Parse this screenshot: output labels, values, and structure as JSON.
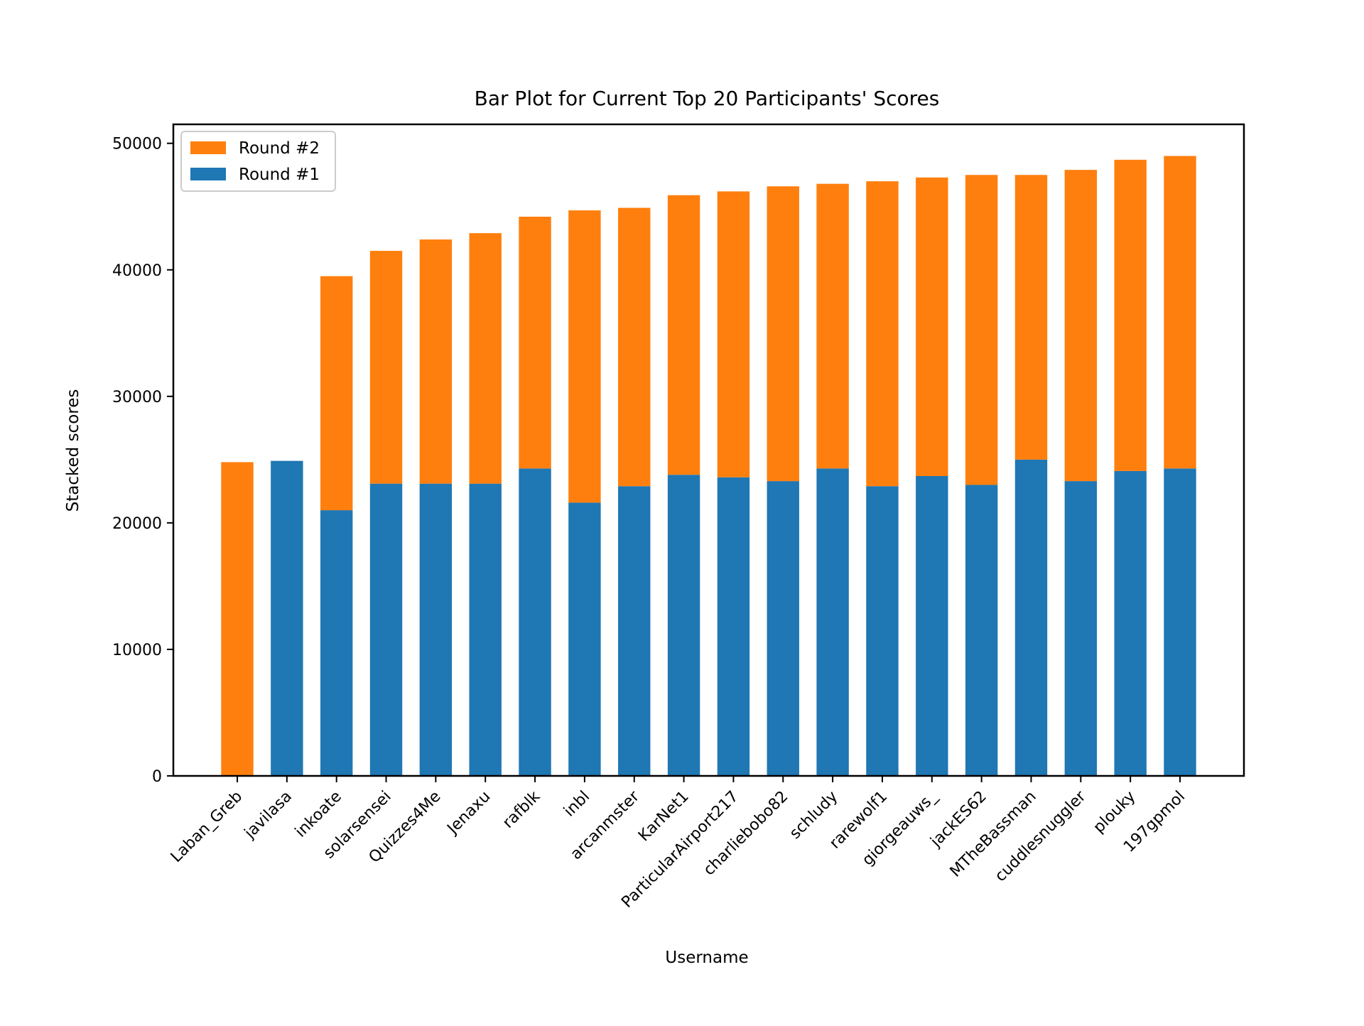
{
  "chart_data": {
    "type": "bar",
    "stacked": true,
    "title": "Bar Plot for Current Top 20 Participants' Scores",
    "xlabel": "Username",
    "ylabel": "Stacked scores",
    "ylim": [
      0,
      51500
    ],
    "yticks": [
      0,
      10000,
      20000,
      30000,
      40000,
      50000
    ],
    "ytick_labels": [
      "0",
      "10000",
      "20000",
      "30000",
      "40000",
      "50000"
    ],
    "legend_position": "upper-left",
    "categories": [
      "Laban_Greb",
      "javilasa",
      "inkoate",
      "solarsensei",
      "Quizzes4Me",
      "Jenaxu",
      "rafblk",
      "inbl",
      "arcanmster",
      "KarNet1",
      "ParticularAirport217",
      "charliebobo82",
      "schludy",
      "rarewolf1",
      "giorgeauws_",
      "jackES62",
      "MTheBassman",
      "cuddlesnuggler",
      "plouky",
      "197gpmol"
    ],
    "series": [
      {
        "name": "Round #1",
        "color": "#1f77b4",
        "values": [
          0,
          24900,
          21000,
          23100,
          23100,
          23100,
          24300,
          21600,
          22900,
          23800,
          23600,
          23300,
          24300,
          22900,
          23700,
          23000,
          25000,
          23300,
          24100,
          24300
        ]
      },
      {
        "name": "Round #2",
        "color": "#ff7f0e",
        "values": [
          24800,
          0,
          18500,
          18400,
          19300,
          19800,
          19900,
          23100,
          22000,
          22100,
          22600,
          23300,
          22500,
          24100,
          23600,
          24500,
          22500,
          24600,
          24600,
          24700
        ]
      }
    ],
    "legend": [
      "Round #2",
      "Round #1"
    ]
  }
}
